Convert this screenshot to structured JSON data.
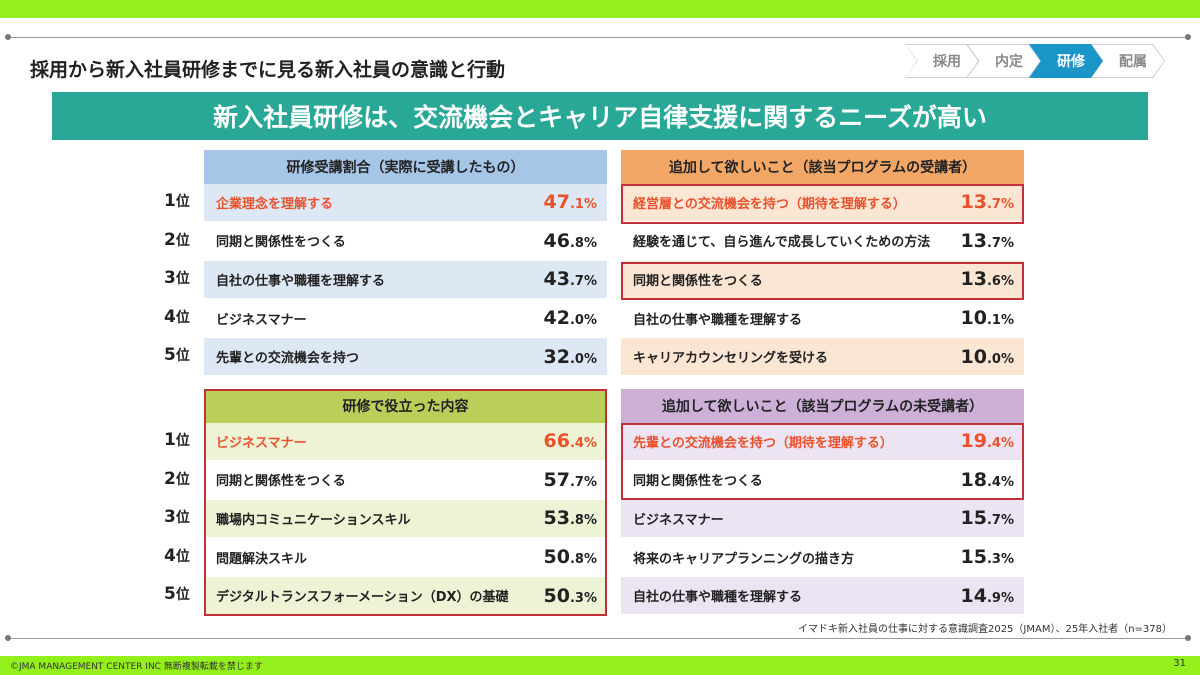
{
  "page_title": "採用から新入社員研修までに見る新入社員の意識と行動",
  "steps": [
    {
      "label": "採用",
      "active": false
    },
    {
      "label": "内定",
      "active": false
    },
    {
      "label": "研修",
      "active": true
    },
    {
      "label": "配属",
      "active": false
    }
  ],
  "banner": "新入社員研修は、交流機会とキャリア自律支援に関するニーズが高い",
  "rank_suffix": "位",
  "panels": [
    {
      "title": "研修受講割合（実際に受講したもの）",
      "header_color": "#a6c6e8",
      "row_color": "#dde8f4",
      "rows": [
        {
          "rank": "1",
          "label": "企業理念を理解する",
          "value_int": "47",
          "value_dec": ".1%",
          "highlight": true
        },
        {
          "rank": "2",
          "label": "同期と関係性をつくる",
          "value_int": "46",
          "value_dec": ".8%",
          "highlight": false
        },
        {
          "rank": "3",
          "label": "自社の仕事や職種を理解する",
          "value_int": "43",
          "value_dec": ".7%",
          "highlight": false
        },
        {
          "rank": "4",
          "label": "ビジネスマナー",
          "value_int": "42",
          "value_dec": ".0%",
          "highlight": false
        },
        {
          "rank": "5",
          "label": "先輩との交流機会を持つ",
          "value_int": "32",
          "value_dec": ".0%",
          "highlight": false
        }
      ]
    },
    {
      "title": "追加して欲しいこと（該当プログラムの受講者）",
      "header_color": "#f2a766",
      "row_color": "#fbe6d3",
      "rows": [
        {
          "label": "経営層との交流機会を持つ（期待を理解する）",
          "value_int": "13",
          "value_dec": ".7%",
          "highlight": true
        },
        {
          "label": "経験を通じて、自ら進んで成長していくための方法",
          "value_int": "13",
          "value_dec": ".7%",
          "highlight": false
        },
        {
          "label": "同期と関係性をつくる",
          "value_int": "13",
          "value_dec": ".6%",
          "highlight": false
        },
        {
          "label": "自社の仕事や職種を理解する",
          "value_int": "10",
          "value_dec": ".1%",
          "highlight": false
        },
        {
          "label": "キャリアカウンセリングを受ける",
          "value_int": "10",
          "value_dec": ".0%",
          "highlight": false
        }
      ]
    },
    {
      "title": "研修で役立った内容",
      "header_color": "#b9cf5a",
      "row_color": "#eef3d6",
      "rows": [
        {
          "rank": "1",
          "label": "ビジネスマナー",
          "value_int": "66",
          "value_dec": ".4%",
          "highlight": true
        },
        {
          "rank": "2",
          "label": "同期と関係性をつくる",
          "value_int": "57",
          "value_dec": ".7%",
          "highlight": false
        },
        {
          "rank": "3",
          "label": "職場内コミュニケーションスキル",
          "value_int": "53",
          "value_dec": ".8%",
          "highlight": false
        },
        {
          "rank": "4",
          "label": "問題解決スキル",
          "value_int": "50",
          "value_dec": ".8%",
          "highlight": false
        },
        {
          "rank": "5",
          "label": "デジタルトランスフォーメーション（DX）の基礎",
          "value_int": "50",
          "value_dec": ".3%",
          "highlight": false
        }
      ]
    },
    {
      "title": "追加して欲しいこと（該当プログラムの未受講者）",
      "header_color": "#cdb0d8",
      "row_color": "#ece4f2",
      "rows": [
        {
          "label": "先輩との交流機会を持つ（期待を理解する）",
          "value_int": "19",
          "value_dec": ".4%",
          "highlight": true
        },
        {
          "label": "同期と関係性をつくる",
          "value_int": "18",
          "value_dec": ".4%",
          "highlight": false
        },
        {
          "label": "ビジネスマナー",
          "value_int": "15",
          "value_dec": ".7%",
          "highlight": false
        },
        {
          "label": "将来のキャリアプランニングの描き方",
          "value_int": "15",
          "value_dec": ".3%",
          "highlight": false
        },
        {
          "label": "自社の仕事や職種を理解する",
          "value_int": "14",
          "value_dec": ".9%",
          "highlight": false
        }
      ]
    }
  ],
  "source": "イマドキ新入社員の仕事に対する意識調査2025（JMAM）、25年入社者（n=378）",
  "copyright": "©JMA MANAGEMENT CENTER INC  無断複製転載を禁じます",
  "page_number": "31"
}
